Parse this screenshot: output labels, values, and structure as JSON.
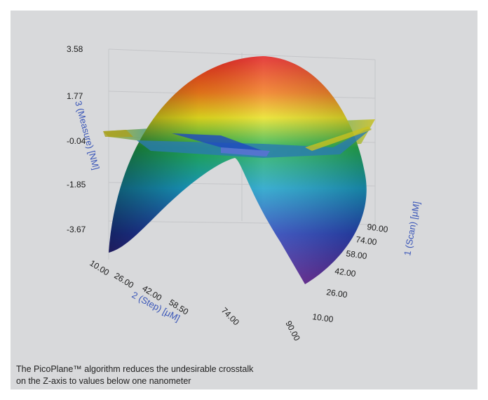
{
  "caption": {
    "line1": "The PicoPlane™ algorithm reduces the undesirable crosstalk",
    "line2": "on the Z-axis to values below one nanometer"
  },
  "chart_data": {
    "type": "surface",
    "z_axis": {
      "label": "3 (Measure) [NM]",
      "ticks": [
        "3.58",
        "1.77",
        "-0.04",
        "-1.85",
        "-3.67"
      ],
      "range": [
        -3.67,
        3.58
      ]
    },
    "x_axis": {
      "label": "2 (Step) [μM]",
      "ticks": [
        "10.00",
        "26.00",
        "42.00",
        "58.50",
        "74.00",
        "90.00"
      ],
      "range": [
        10,
        90
      ]
    },
    "y_axis": {
      "label": "1 (Scan) [μM]",
      "ticks": [
        "10.00",
        "26.00",
        "42.00",
        "58.00",
        "74.00",
        "90.00"
      ],
      "range": [
        10,
        90
      ]
    },
    "surfaces": [
      {
        "shape": "parabolic arch",
        "peak_z": 3.58,
        "min_z": -3.67
      },
      {
        "shape": "flat plane",
        "z": -0.04
      }
    ],
    "colormap": [
      "#5a1a8a",
      "#2540b8",
      "#1aa0c8",
      "#22b050",
      "#e8e020",
      "#f08020",
      "#e01e1e"
    ]
  }
}
